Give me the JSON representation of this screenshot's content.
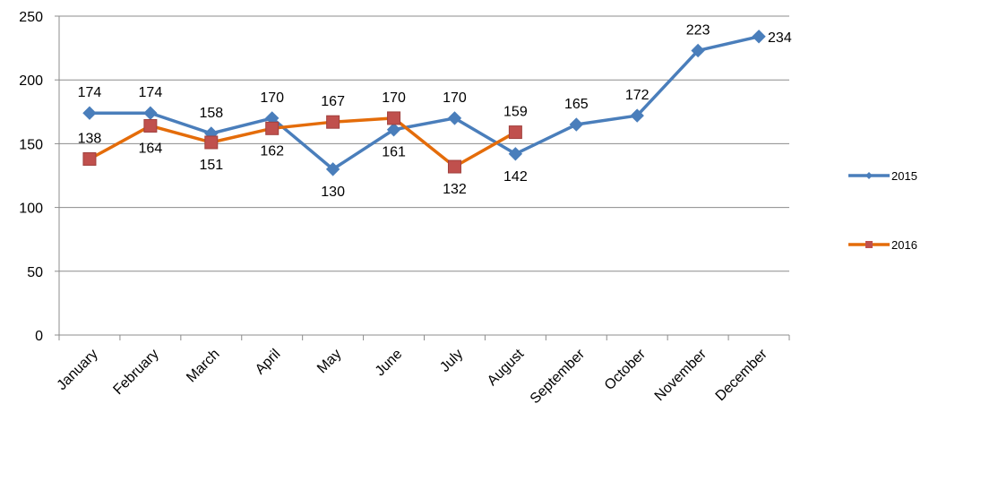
{
  "chart_data": {
    "type": "line",
    "categories": [
      "January",
      "February",
      "March",
      "April",
      "May",
      "June",
      "July",
      "August",
      "September",
      "October",
      "November",
      "December"
    ],
    "series": [
      {
        "name": "2015",
        "color": "#4a7ebb",
        "marker": "diamond",
        "values": [
          174,
          174,
          158,
          170,
          130,
          161,
          170,
          142,
          165,
          172,
          223,
          234
        ]
      },
      {
        "name": "2016",
        "color": "#e46c0a",
        "marker_color": "#c0504d",
        "marker": "square",
        "values": [
          138,
          164,
          151,
          162,
          167,
          170,
          132,
          159,
          null,
          null,
          null,
          null
        ]
      }
    ],
    "ylim": [
      0,
      250
    ],
    "yticks": [
      0,
      50,
      100,
      150,
      200,
      250
    ],
    "grid": true,
    "legend_position": "right"
  }
}
